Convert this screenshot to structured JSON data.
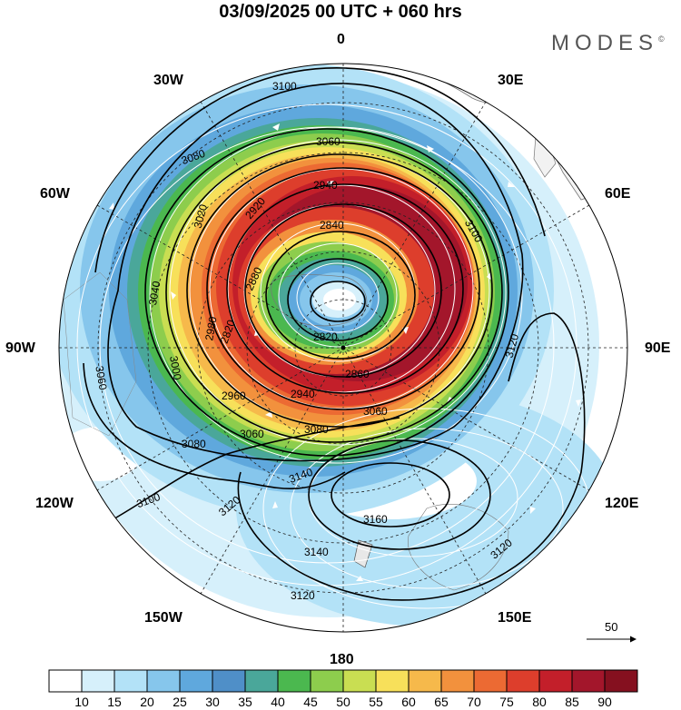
{
  "header": {
    "title": "03/09/2025  00 UTC  + 060 hrs",
    "brand": "MODES",
    "brand_mark": "©"
  },
  "longitude_labels": [
    "0",
    "30E",
    "60E",
    "90E",
    "120E",
    "150E",
    "180",
    "150W",
    "120W",
    "90W",
    "60W",
    "30W"
  ],
  "contour_labels": [
    "2840",
    "2820",
    "2860",
    "2880",
    "2920",
    "2940",
    "2960",
    "2980",
    "3000",
    "3020",
    "3040",
    "3060",
    "3080",
    "3100",
    "3120",
    "3140",
    "3160"
  ],
  "vector_reference": {
    "label": "50"
  },
  "colorbar": {
    "labels": [
      "10",
      "15",
      "20",
      "25",
      "30",
      "35",
      "40",
      "45",
      "50",
      "55",
      "60",
      "65",
      "70",
      "75",
      "80",
      "85",
      "90"
    ],
    "colors": [
      "#ffffff",
      "#d6f0fb",
      "#b3e2f7",
      "#86c6ec",
      "#5fa8dd",
      "#4f8fc8",
      "#4aa79a",
      "#4bb84f",
      "#8dcd4d",
      "#c9de52",
      "#f7e05a",
      "#f6b94b",
      "#f2913d",
      "#ec6a33",
      "#dd3e2c",
      "#c31f2a",
      "#a3162b",
      "#85101f"
    ]
  },
  "colors": {
    "land": "#f2f2f2",
    "coast": "#777777",
    "contour": "#000000",
    "streamline": "#ffffff"
  }
}
